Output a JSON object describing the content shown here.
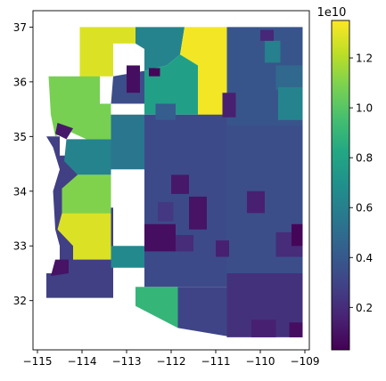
{
  "chart_data": {
    "type": "choropleth",
    "xlim": [
      -115.1,
      -108.9
    ],
    "ylim": [
      31.1,
      37.3
    ],
    "x_ticks": [
      -115,
      -114,
      -113,
      -112,
      -111,
      -110,
      -109
    ],
    "y_ticks": [
      32,
      33,
      34,
      35,
      36,
      37
    ],
    "x_tick_labels": [
      "−115",
      "−114",
      "−113",
      "−112",
      "−111",
      "−110",
      "−109"
    ],
    "y_tick_labels": [
      "32",
      "33",
      "34",
      "35",
      "36",
      "37"
    ],
    "colorbar": {
      "colormap": "viridis",
      "range": [
        0.03,
        1.35
      ],
      "ticks": [
        0.2,
        0.4,
        0.6,
        0.8,
        1.0,
        1.2
      ],
      "tick_labels": [
        "0.2",
        "0.4",
        "0.6",
        "0.8",
        "1.0",
        "1.2"
      ],
      "offset_label": "1e10"
    },
    "regions": [
      {
        "poly": [
          [
            -114.8,
            35.0
          ],
          [
            -114.5,
            35.0
          ],
          [
            -114.5,
            34.65
          ],
          [
            -114.1,
            34.65
          ],
          [
            -114.1,
            33.7
          ],
          [
            -113.3,
            33.7
          ],
          [
            -113.3,
            32.05
          ],
          [
            -114.8,
            32.05
          ],
          [
            -114.8,
            32.5
          ],
          [
            -114.5,
            32.5
          ],
          [
            -114.5,
            33.0
          ],
          [
            -114.6,
            33.3
          ],
          [
            -114.65,
            34.0
          ],
          [
            -114.5,
            34.4
          ],
          [
            -114.65,
            34.8
          ]
        ],
        "value": 0.28
      },
      {
        "poly": [
          [
            -114.05,
            37.0
          ],
          [
            -112.8,
            37.0
          ],
          [
            -112.8,
            36.7
          ],
          [
            -113.3,
            36.7
          ],
          [
            -113.3,
            36.1
          ],
          [
            -113.6,
            36.1
          ],
          [
            -113.6,
            35.6
          ],
          [
            -114.05,
            35.6
          ]
        ],
        "value": 1.28
      },
      {
        "poly": [
          [
            -112.8,
            37.0
          ],
          [
            -111.7,
            37.0
          ],
          [
            -111.8,
            36.5
          ],
          [
            -112.1,
            36.3
          ],
          [
            -112.6,
            36.2
          ],
          [
            -112.6,
            36.6
          ],
          [
            -112.8,
            36.7
          ]
        ],
        "value": 0.62
      },
      {
        "poly": [
          [
            -111.7,
            37.0
          ],
          [
            -110.75,
            37.0
          ],
          [
            -110.75,
            35.2
          ],
          [
            -111.4,
            35.2
          ],
          [
            -111.4,
            36.3
          ],
          [
            -111.8,
            36.5
          ]
        ],
        "value": 1.33
      },
      {
        "poly": [
          [
            -110.75,
            37.0
          ],
          [
            -109.05,
            37.0
          ],
          [
            -109.05,
            35.2
          ],
          [
            -110.75,
            35.2
          ]
        ],
        "value": 0.38
      },
      {
        "poly": [
          [
            -114.75,
            36.1
          ],
          [
            -113.6,
            36.1
          ],
          [
            -113.6,
            35.6
          ],
          [
            -113.35,
            35.6
          ],
          [
            -113.35,
            34.95
          ],
          [
            -113.9,
            34.95
          ],
          [
            -114.3,
            35.1
          ],
          [
            -114.6,
            35.0
          ],
          [
            -114.7,
            35.4
          ]
        ],
        "value": 1.08
      },
      {
        "poly": [
          [
            -113.35,
            35.6
          ],
          [
            -112.6,
            35.6
          ],
          [
            -112.6,
            36.2
          ],
          [
            -113.3,
            36.1
          ]
        ],
        "value": 0.35
      },
      {
        "poly": [
          [
            -112.6,
            36.2
          ],
          [
            -112.1,
            36.3
          ],
          [
            -111.8,
            36.5
          ],
          [
            -111.4,
            36.3
          ],
          [
            -111.4,
            35.4
          ],
          [
            -112.6,
            35.4
          ]
        ],
        "value": 0.78
      },
      {
        "poly": [
          [
            -113.35,
            35.4
          ],
          [
            -112.6,
            35.4
          ],
          [
            -112.6,
            34.4
          ],
          [
            -113.35,
            34.4
          ]
        ],
        "value": 0.55
      },
      {
        "poly": [
          [
            -113.35,
            34.95
          ],
          [
            -113.35,
            34.3
          ],
          [
            -114.1,
            34.3
          ],
          [
            -114.4,
            34.55
          ],
          [
            -114.35,
            34.95
          ]
        ],
        "value": 0.62
      },
      {
        "poly": [
          [
            -114.35,
            34.95
          ],
          [
            -114.2,
            35.15
          ],
          [
            -114.55,
            35.25
          ],
          [
            -114.6,
            35.05
          ]
        ],
        "value": 0.12
      },
      {
        "poly": [
          [
            -114.1,
            34.3
          ],
          [
            -113.35,
            34.3
          ],
          [
            -113.35,
            33.6
          ],
          [
            -114.45,
            33.6
          ],
          [
            -114.45,
            34.05
          ]
        ],
        "value": 1.1
      },
      {
        "poly": [
          [
            -114.45,
            33.6
          ],
          [
            -113.35,
            33.6
          ],
          [
            -113.35,
            32.75
          ],
          [
            -114.2,
            32.75
          ],
          [
            -114.2,
            33.0
          ],
          [
            -114.55,
            33.3
          ]
        ],
        "value": 1.28
      },
      {
        "poly": [
          [
            -113.35,
            33.0
          ],
          [
            -112.6,
            33.0
          ],
          [
            -112.6,
            32.6
          ],
          [
            -113.35,
            32.6
          ]
        ],
        "value": 0.65
      },
      {
        "poly": [
          [
            -112.8,
            32.25
          ],
          [
            -111.85,
            32.25
          ],
          [
            -111.85,
            31.5
          ],
          [
            -112.8,
            31.9
          ]
        ],
        "value": 0.9
      },
      {
        "poly": [
          [
            -111.85,
            32.25
          ],
          [
            -110.75,
            32.25
          ],
          [
            -110.75,
            31.35
          ],
          [
            -111.85,
            31.5
          ]
        ],
        "value": 0.3
      },
      {
        "poly": [
          [
            -110.75,
            32.5
          ],
          [
            -109.05,
            32.5
          ],
          [
            -109.05,
            31.33
          ],
          [
            -110.75,
            31.33
          ]
        ],
        "value": 0.22
      },
      {
        "poly": [
          [
            -110.75,
            35.2
          ],
          [
            -109.05,
            35.2
          ],
          [
            -109.05,
            32.5
          ],
          [
            -110.75,
            32.5
          ]
        ],
        "value": 0.35
      },
      {
        "poly": [
          [
            -112.6,
            35.4
          ],
          [
            -110.75,
            35.4
          ],
          [
            -110.75,
            32.25
          ],
          [
            -112.6,
            32.25
          ]
        ],
        "value": 0.33
      },
      {
        "poly": [
          [
            -112.6,
            33.4
          ],
          [
            -111.9,
            33.4
          ],
          [
            -111.9,
            32.9
          ],
          [
            -112.6,
            32.9
          ]
        ],
        "value": 0.08
      },
      {
        "poly": [
          [
            -111.6,
            33.9
          ],
          [
            -111.2,
            33.9
          ],
          [
            -111.2,
            33.3
          ],
          [
            -111.6,
            33.3
          ]
        ],
        "value": 0.1
      },
      {
        "poly": [
          [
            -112.0,
            34.3
          ],
          [
            -111.6,
            34.3
          ],
          [
            -111.6,
            33.95
          ],
          [
            -112.0,
            33.95
          ]
        ],
        "value": 0.12
      },
      {
        "poly": [
          [
            -112.3,
            33.8
          ],
          [
            -111.95,
            33.8
          ],
          [
            -111.95,
            33.45
          ],
          [
            -112.3,
            33.45
          ]
        ],
        "value": 0.25
      },
      {
        "poly": [
          [
            -112.35,
            35.6
          ],
          [
            -111.9,
            35.6
          ],
          [
            -111.9,
            35.3
          ],
          [
            -112.35,
            35.3
          ]
        ],
        "value": 0.42
      },
      {
        "poly": [
          [
            -111.9,
            33.2
          ],
          [
            -111.5,
            33.2
          ],
          [
            -111.5,
            32.9
          ],
          [
            -111.9,
            32.9
          ]
        ],
        "value": 0.2
      },
      {
        "poly": [
          [
            -111.0,
            33.1
          ],
          [
            -110.7,
            33.1
          ],
          [
            -110.7,
            32.8
          ],
          [
            -111.0,
            32.8
          ]
        ],
        "value": 0.15
      },
      {
        "poly": [
          [
            -109.9,
            36.75
          ],
          [
            -109.55,
            36.75
          ],
          [
            -109.55,
            36.35
          ],
          [
            -109.9,
            36.35
          ]
        ],
        "value": 0.6
      },
      {
        "poly": [
          [
            -109.65,
            36.3
          ],
          [
            -109.05,
            36.3
          ],
          [
            -109.05,
            35.85
          ],
          [
            -109.65,
            35.85
          ]
        ],
        "value": 0.48
      },
      {
        "poly": [
          [
            -109.6,
            35.9
          ],
          [
            -109.05,
            35.9
          ],
          [
            -109.05,
            35.3
          ],
          [
            -109.6,
            35.3
          ]
        ],
        "value": 0.62
      },
      {
        "poly": [
          [
            -110.3,
            34.0
          ],
          [
            -109.9,
            34.0
          ],
          [
            -109.9,
            33.6
          ],
          [
            -110.3,
            33.6
          ]
        ],
        "value": 0.15
      },
      {
        "poly": [
          [
            -109.65,
            33.25
          ],
          [
            -109.05,
            33.25
          ],
          [
            -109.05,
            32.8
          ],
          [
            -109.65,
            32.8
          ]
        ],
        "value": 0.2
      },
      {
        "poly": [
          [
            -109.3,
            33.4
          ],
          [
            -109.05,
            33.4
          ],
          [
            -109.05,
            33.0
          ],
          [
            -109.3,
            33.0
          ]
        ],
        "value": 0.05
      },
      {
        "poly": [
          [
            -110.2,
            31.65
          ],
          [
            -109.65,
            31.65
          ],
          [
            -109.65,
            31.33
          ],
          [
            -110.2,
            31.33
          ]
        ],
        "value": 0.15
      },
      {
        "poly": [
          [
            -109.35,
            31.6
          ],
          [
            -109.05,
            31.6
          ],
          [
            -109.05,
            31.33
          ],
          [
            -109.35,
            31.33
          ]
        ],
        "value": 0.08
      },
      {
        "poly": [
          [
            -110.0,
            36.95
          ],
          [
            -109.7,
            36.95
          ],
          [
            -109.7,
            36.75
          ],
          [
            -110.0,
            36.75
          ]
        ],
        "value": 0.18
      },
      {
        "poly": [
          [
            -110.85,
            35.8
          ],
          [
            -110.55,
            35.8
          ],
          [
            -110.55,
            35.35
          ],
          [
            -110.85,
            35.35
          ]
        ],
        "value": 0.15
      },
      {
        "poly": [
          [
            -113.0,
            36.3
          ],
          [
            -112.7,
            36.3
          ],
          [
            -112.7,
            35.8
          ],
          [
            -113.0,
            35.8
          ]
        ],
        "value": 0.08
      },
      {
        "poly": [
          [
            -112.5,
            36.25
          ],
          [
            -112.25,
            36.25
          ],
          [
            -112.25,
            36.1
          ],
          [
            -112.5,
            36.1
          ]
        ],
        "value": 0.05
      },
      {
        "poly": [
          [
            -114.6,
            32.75
          ],
          [
            -114.3,
            32.75
          ],
          [
            -114.3,
            32.5
          ],
          [
            -114.7,
            32.45
          ]
        ],
        "value": 0.1
      }
    ]
  }
}
